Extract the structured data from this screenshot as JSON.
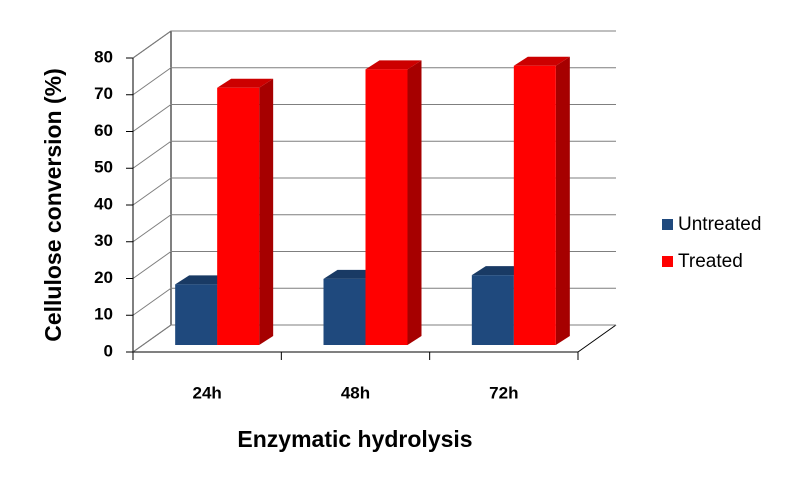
{
  "chart_data": {
    "type": "bar3d",
    "categories": [
      "24h",
      "48h",
      "72h"
    ],
    "series": [
      {
        "name": "Untreated",
        "color": "#1f497d",
        "values": [
          16.5,
          18,
          19
        ]
      },
      {
        "name": "Treated",
        "color": "#ff0000",
        "values": [
          70,
          75,
          76
        ]
      }
    ],
    "xlabel": "Enzymatic hydrolysis",
    "ylabel": "Cellulose conversion (%)",
    "ylim": [
      0,
      80
    ],
    "yticks": [
      0,
      10,
      20,
      30,
      40,
      50,
      60,
      70,
      80
    ],
    "grid": true,
    "legend": "right"
  }
}
